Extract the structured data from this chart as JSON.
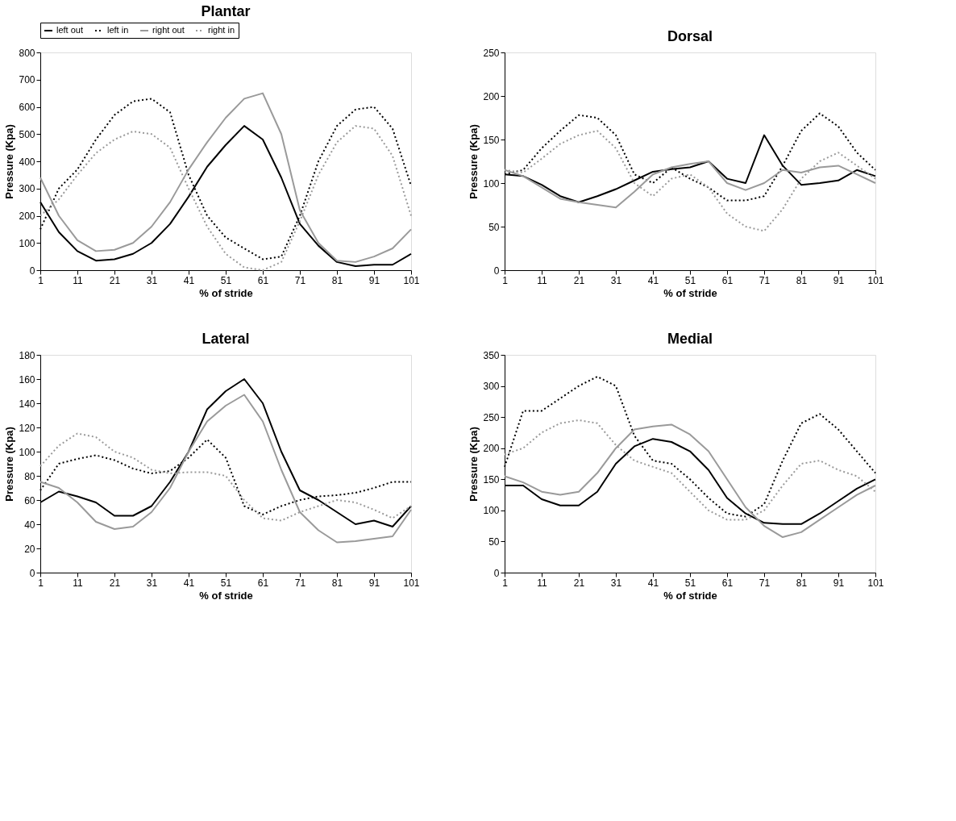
{
  "chart_data": [
    {
      "type": "line",
      "title": "Plantar",
      "xlabel": "% of stride",
      "ylabel": "Pressure (Kpa)",
      "xlim": [
        1,
        101
      ],
      "xticks": [
        1,
        11,
        21,
        31,
        41,
        51,
        61,
        71,
        81,
        91,
        101
      ],
      "ylim": [
        0,
        800
      ],
      "yticks": [
        0,
        100,
        200,
        300,
        400,
        500,
        600,
        700,
        800
      ],
      "grid": false,
      "legend": "top left",
      "x": [
        1,
        6,
        11,
        16,
        21,
        26,
        31,
        36,
        41,
        46,
        51,
        56,
        61,
        66,
        71,
        76,
        81,
        86,
        91,
        96,
        101
      ],
      "series": [
        {
          "name": "left out",
          "color": "#000000",
          "line_style": "solid",
          "values": [
            250,
            140,
            70,
            35,
            40,
            60,
            100,
            170,
            270,
            380,
            460,
            530,
            480,
            340,
            170,
            90,
            30,
            15,
            20,
            20,
            60
          ]
        },
        {
          "name": "left in",
          "color": "#000000",
          "line_style": "dotted",
          "values": [
            150,
            300,
            370,
            480,
            570,
            620,
            630,
            580,
            350,
            200,
            120,
            80,
            40,
            50,
            200,
            400,
            530,
            590,
            600,
            520,
            310
          ]
        },
        {
          "name": "right out",
          "color": "#9a9a9a",
          "line_style": "solid",
          "values": [
            340,
            200,
            110,
            70,
            75,
            100,
            160,
            250,
            370,
            470,
            560,
            630,
            650,
            500,
            220,
            100,
            35,
            30,
            50,
            80,
            150
          ]
        },
        {
          "name": "right in",
          "color": "#9a9a9a",
          "line_style": "dotted",
          "values": [
            200,
            260,
            350,
            430,
            480,
            510,
            500,
            450,
            300,
            160,
            60,
            10,
            0,
            30,
            180,
            350,
            470,
            530,
            520,
            420,
            200
          ]
        }
      ]
    },
    {
      "type": "line",
      "title": "Dorsal",
      "xlabel": "% of stride",
      "ylabel": "Pressure (Kpa)",
      "xlim": [
        1,
        101
      ],
      "xticks": [
        1,
        11,
        21,
        31,
        41,
        51,
        61,
        71,
        81,
        91,
        101
      ],
      "ylim": [
        0,
        250
      ],
      "yticks": [
        0,
        50,
        100,
        150,
        200,
        250
      ],
      "grid": false,
      "legend": false,
      "x": [
        1,
        6,
        11,
        16,
        21,
        26,
        31,
        36,
        41,
        46,
        51,
        56,
        61,
        66,
        71,
        76,
        81,
        86,
        91,
        96,
        101
      ],
      "series": [
        {
          "color": "#000000",
          "line_style": "solid",
          "values": [
            110,
            108,
            98,
            85,
            78,
            85,
            93,
            103,
            113,
            116,
            118,
            125,
            105,
            100,
            155,
            120,
            98,
            100,
            103,
            115,
            108
          ]
        },
        {
          "color": "#000000",
          "line_style": "dotted",
          "values": [
            110,
            115,
            140,
            160,
            178,
            175,
            155,
            110,
            100,
            118,
            105,
            95,
            80,
            80,
            85,
            120,
            160,
            180,
            165,
            135,
            115
          ]
        },
        {
          "color": "#9a9a9a",
          "line_style": "solid",
          "values": [
            115,
            108,
            95,
            82,
            78,
            75,
            72,
            90,
            110,
            118,
            122,
            125,
            100,
            92,
            100,
            115,
            112,
            118,
            120,
            110,
            100
          ]
        },
        {
          "color": "#9a9a9a",
          "line_style": "dotted",
          "values": [
            115,
            112,
            128,
            145,
            155,
            160,
            140,
            100,
            85,
            105,
            110,
            95,
            65,
            50,
            45,
            70,
            105,
            125,
            135,
            120,
            105
          ]
        }
      ]
    },
    {
      "type": "line",
      "title": "Lateral",
      "xlabel": "% of stride",
      "ylabel": "Pressure (Kpa)",
      "xlim": [
        1,
        101
      ],
      "xticks": [
        1,
        11,
        21,
        31,
        41,
        51,
        61,
        71,
        81,
        91,
        101
      ],
      "ylim": [
        0,
        180
      ],
      "yticks": [
        0,
        20,
        40,
        60,
        80,
        100,
        120,
        140,
        160,
        180
      ],
      "grid": false,
      "legend": false,
      "x": [
        1,
        6,
        11,
        16,
        21,
        26,
        31,
        36,
        41,
        46,
        51,
        56,
        61,
        66,
        71,
        76,
        81,
        86,
        91,
        96,
        101
      ],
      "series": [
        {
          "color": "#000000",
          "line_style": "solid",
          "values": [
            58,
            67,
            63,
            58,
            47,
            47,
            55,
            75,
            100,
            135,
            150,
            160,
            140,
            100,
            68,
            60,
            50,
            40,
            43,
            38,
            55
          ]
        },
        {
          "color": "#000000",
          "line_style": "dotted",
          "values": [
            68,
            90,
            94,
            97,
            93,
            86,
            82,
            84,
            95,
            110,
            95,
            55,
            48,
            55,
            60,
            63,
            64,
            66,
            70,
            75,
            75
          ]
        },
        {
          "color": "#9a9a9a",
          "line_style": "solid",
          "values": [
            75,
            70,
            58,
            42,
            36,
            38,
            50,
            70,
            100,
            125,
            138,
            147,
            125,
            85,
            50,
            35,
            25,
            26,
            28,
            30,
            52
          ]
        },
        {
          "color": "#9a9a9a",
          "line_style": "dotted",
          "values": [
            88,
            105,
            115,
            112,
            100,
            95,
            85,
            82,
            83,
            83,
            80,
            60,
            45,
            43,
            50,
            55,
            60,
            58,
            52,
            45,
            55
          ]
        }
      ]
    },
    {
      "type": "line",
      "title": "Medial",
      "xlabel": "% of stride",
      "ylabel": "Pressure (Kpa)",
      "xlim": [
        1,
        101
      ],
      "xticks": [
        1,
        11,
        21,
        31,
        41,
        51,
        61,
        71,
        81,
        91,
        101
      ],
      "ylim": [
        0,
        350
      ],
      "yticks": [
        0,
        50,
        100,
        150,
        200,
        250,
        300,
        350
      ],
      "grid": false,
      "legend": false,
      "x": [
        1,
        6,
        11,
        16,
        21,
        26,
        31,
        36,
        41,
        46,
        51,
        56,
        61,
        66,
        71,
        76,
        81,
        86,
        91,
        96,
        101
      ],
      "series": [
        {
          "color": "#000000",
          "line_style": "solid",
          "values": [
            140,
            140,
            118,
            108,
            108,
            130,
            175,
            203,
            215,
            210,
            195,
            165,
            120,
            95,
            80,
            78,
            78,
            95,
            115,
            135,
            150
          ]
        },
        {
          "color": "#000000",
          "line_style": "dotted",
          "values": [
            170,
            260,
            260,
            280,
            300,
            315,
            300,
            220,
            180,
            175,
            150,
            120,
            95,
            90,
            110,
            180,
            240,
            255,
            230,
            195,
            160
          ]
        },
        {
          "color": "#9a9a9a",
          "line_style": "solid",
          "values": [
            155,
            145,
            130,
            125,
            130,
            160,
            200,
            230,
            235,
            238,
            222,
            195,
            150,
            105,
            75,
            57,
            65,
            85,
            105,
            125,
            140
          ]
        },
        {
          "color": "#9a9a9a",
          "line_style": "dotted",
          "values": [
            190,
            200,
            225,
            240,
            245,
            240,
            205,
            180,
            170,
            160,
            130,
            100,
            85,
            85,
            100,
            140,
            175,
            180,
            165,
            155,
            130
          ]
        }
      ]
    }
  ]
}
